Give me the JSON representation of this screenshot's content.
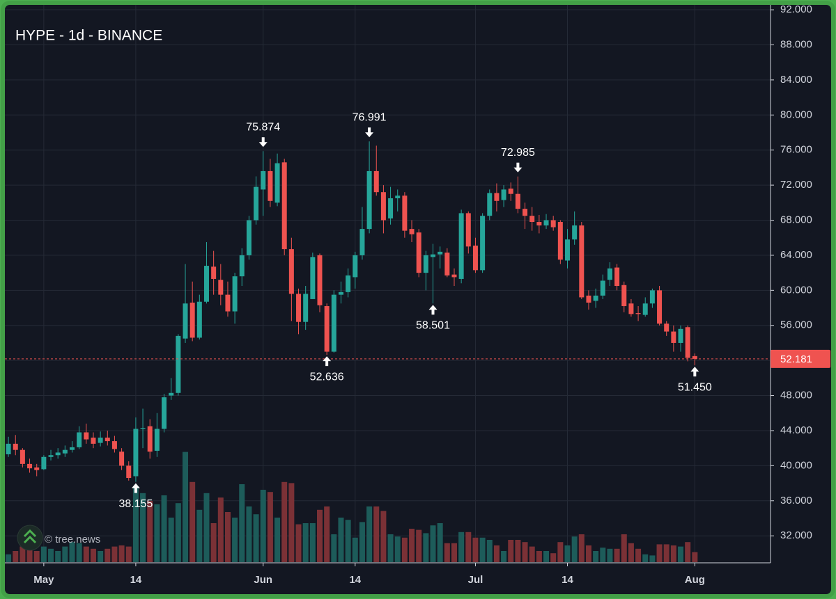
{
  "chart_data": {
    "type": "candlestick",
    "title": "HYPE - 1d - BINANCE",
    "watermark": "© tree.news",
    "up_color": "#26a69a",
    "down_color": "#ef5350",
    "volume_up_color": "#1d5c5a",
    "volume_down_color": "#7b3136",
    "grid": true,
    "x": [
      -5,
      -4,
      -3,
      -2,
      -1,
      0,
      1,
      2,
      3,
      4,
      5,
      6,
      7,
      8,
      9,
      10,
      11,
      12,
      13,
      14,
      15,
      16,
      17,
      18,
      19,
      20,
      21,
      22,
      23,
      24,
      25,
      26,
      27,
      28,
      29,
      30,
      31,
      32,
      33,
      34,
      35,
      36,
      37,
      38,
      39,
      40,
      41,
      42,
      43,
      44,
      45,
      46,
      47,
      48,
      49,
      50,
      51,
      52,
      53,
      54,
      55,
      56,
      57,
      58,
      59,
      60,
      61,
      62,
      63,
      64,
      65,
      66,
      67,
      68,
      69,
      70,
      71,
      72,
      73,
      74,
      75,
      76,
      77,
      78,
      79,
      80,
      81,
      82,
      83,
      84,
      85,
      86,
      87,
      88,
      89,
      90,
      91,
      92
    ],
    "open": [
      41.3,
      42.5,
      41.8,
      40.2,
      39.8,
      39.6,
      41.0,
      41.2,
      41.4,
      41.8,
      42.1,
      43.8,
      43.2,
      42.6,
      43.2,
      42.8,
      41.6,
      40.0,
      38.8,
      44.2,
      44.5,
      41.7,
      44.2,
      48.0,
      48.3,
      54.5,
      58.6,
      54.6,
      58.7,
      62.7,
      61.2,
      59.5,
      57.6,
      61.6,
      64.0,
      68.0,
      71.5,
      73.6,
      70.0,
      74.6,
      64.7,
      59.6,
      56.4,
      59.0,
      64.0,
      58.2,
      53.0,
      59.5,
      59.8,
      61.5,
      64.0,
      67.0,
      73.6,
      71.2,
      68.2,
      70.5,
      70.8,
      67.0,
      66.6,
      62.0,
      63.8,
      64.1,
      64.3,
      61.8,
      61.3,
      68.8,
      65.1,
      62.3,
      68.5,
      71.1,
      70.3,
      71.6,
      71.0,
      69.3,
      68.5,
      67.8,
      67.4,
      68.0,
      67.8,
      63.4,
      65.8,
      67.4,
      59.4,
      58.8,
      59.4,
      61.2,
      62.6,
      60.6,
      58.5,
      57.4,
      57.2,
      58.5,
      60.0,
      56.2,
      55.3,
      54.0,
      55.8,
      52.5
    ],
    "high": [
      43.3,
      43.5,
      42.0,
      40.8,
      40.2,
      41.2,
      41.8,
      42.0,
      42.3,
      42.8,
      44.5,
      44.8,
      43.8,
      43.9,
      44.0,
      43.4,
      42.0,
      40.5,
      45.5,
      46.5,
      45.3,
      46.0,
      48.2,
      50.0,
      55.0,
      63.0,
      61.0,
      59.5,
      65.5,
      64.5,
      63.0,
      61.0,
      62.0,
      64.8,
      68.5,
      73.0,
      75.874,
      75.0,
      75.6,
      75.0,
      66.0,
      60.2,
      60.5,
      64.3,
      64.2,
      58.5,
      60.0,
      61.0,
      62.5,
      64.4,
      69.5,
      76.991,
      76.5,
      72.0,
      71.8,
      71.5,
      71.2,
      68.0,
      67.0,
      64.5,
      65.3,
      65.0,
      64.8,
      62.5,
      69.2,
      69.0,
      66.0,
      68.8,
      71.5,
      72.2,
      72.0,
      72.3,
      72.985,
      70.0,
      69.5,
      68.6,
      68.7,
      68.5,
      68.0,
      67.0,
      69.0,
      67.8,
      60.0,
      60.2,
      61.8,
      63.2,
      63.0,
      61.0,
      59.0,
      58.2,
      59.2,
      60.2,
      60.5,
      56.5,
      56.0,
      56.0,
      56.0,
      52.8
    ],
    "low": [
      41.0,
      41.2,
      39.8,
      39.2,
      38.8,
      39.5,
      40.6,
      40.8,
      41.0,
      41.5,
      41.9,
      42.5,
      42.0,
      42.2,
      42.3,
      41.5,
      39.5,
      38.3,
      38.155,
      42.0,
      40.8,
      41.0,
      43.8,
      47.5,
      48.0,
      54.0,
      54.2,
      54.4,
      58.5,
      59.5,
      58.3,
      57.0,
      56.2,
      60.5,
      63.5,
      67.5,
      68.5,
      69.5,
      69.6,
      64.0,
      56.5,
      55.0,
      55.5,
      59.0,
      57.5,
      52.636,
      52.9,
      58.5,
      59.2,
      60.2,
      63.5,
      66.5,
      70.8,
      66.5,
      67.5,
      69.0,
      66.0,
      65.5,
      61.5,
      60.0,
      58.501,
      62.5,
      61.5,
      60.5,
      60.8,
      64.2,
      62.0,
      62.0,
      68.0,
      69.0,
      69.5,
      70.2,
      68.8,
      67.0,
      66.8,
      66.5,
      67.0,
      66.8,
      63.0,
      62.5,
      65.2,
      59.0,
      57.8,
      58.0,
      59.0,
      60.5,
      60.0,
      57.5,
      57.0,
      56.5,
      57.0,
      58.0,
      56.0,
      54.8,
      53.0,
      53.0,
      51.9,
      51.45
    ],
    "close": [
      42.5,
      41.8,
      40.2,
      39.7,
      39.5,
      41.0,
      41.2,
      41.5,
      41.8,
      42.1,
      43.8,
      43.0,
      42.5,
      43.2,
      42.8,
      41.9,
      40.0,
      38.6,
      44.2,
      44.3,
      41.6,
      44.2,
      47.8,
      48.3,
      54.8,
      58.5,
      54.6,
      58.7,
      62.8,
      61.3,
      59.5,
      57.6,
      61.6,
      64.0,
      68.0,
      71.8,
      73.6,
      70.2,
      74.5,
      64.7,
      59.6,
      56.4,
      59.6,
      63.8,
      58.3,
      53.0,
      59.5,
      59.8,
      61.7,
      64.0,
      67.0,
      73.6,
      71.2,
      68.0,
      70.5,
      70.8,
      66.8,
      66.4,
      62.0,
      64.0,
      64.1,
      64.4,
      61.7,
      61.5,
      68.8,
      65.0,
      62.3,
      68.5,
      71.1,
      70.2,
      71.5,
      71.0,
      69.3,
      68.5,
      67.8,
      67.4,
      68.0,
      67.2,
      63.5,
      65.8,
      67.4,
      59.2,
      58.6,
      59.4,
      61.1,
      62.5,
      60.5,
      58.2,
      57.3,
      57.3,
      58.5,
      60.0,
      56.2,
      55.3,
      54.0,
      55.6,
      52.3,
      52.181
    ],
    "volume": [
      7,
      10,
      14,
      12,
      10,
      14,
      12,
      10,
      14,
      18,
      17,
      14,
      12,
      10,
      12,
      14,
      15,
      14,
      68,
      62,
      55,
      52,
      60,
      40,
      53,
      99,
      72,
      47,
      62,
      35,
      58,
      45,
      40,
      70,
      50,
      43,
      65,
      63,
      40,
      72,
      71,
      34,
      35,
      35,
      47,
      50,
      25,
      40,
      38,
      22,
      36,
      50,
      50,
      46,
      25,
      23,
      22,
      30,
      29,
      26,
      33,
      35,
      17,
      17,
      27,
      27,
      22,
      22,
      20,
      15,
      10,
      20,
      20,
      18,
      14,
      10,
      10,
      8,
      18,
      15,
      23,
      25,
      15,
      10,
      13,
      12,
      12,
      25,
      17,
      12,
      7,
      6,
      16,
      16,
      15,
      14,
      18,
      9
    ],
    "vlim": [
      0,
      100
    ],
    "xlim": [
      -5.5,
      102.6
    ],
    "xticks": [
      {
        "value": 0,
        "label": "May"
      },
      {
        "value": 13,
        "label": "14"
      },
      {
        "value": 31,
        "label": "Jun"
      },
      {
        "value": 44,
        "label": "14"
      },
      {
        "value": 61,
        "label": "Jul"
      },
      {
        "value": 74,
        "label": "14"
      },
      {
        "value": 92,
        "label": "Aug"
      }
    ],
    "ylim": [
      29,
      92.56
    ],
    "yticks": [
      {
        "value": 32,
        "label": "32.000"
      },
      {
        "value": 36,
        "label": "36.000"
      },
      {
        "value": 40,
        "label": "40.000"
      },
      {
        "value": 44,
        "label": "44.000"
      },
      {
        "value": 48,
        "label": "48.000"
      },
      {
        "value": 52,
        "label": "52.000"
      },
      {
        "value": 56,
        "label": "56.000"
      },
      {
        "value": 60,
        "label": "60.000"
      },
      {
        "value": 64,
        "label": "64.000"
      },
      {
        "value": 68,
        "label": "68.000"
      },
      {
        "value": 72,
        "label": "72.000"
      },
      {
        "value": 76,
        "label": "76.000"
      },
      {
        "value": 80,
        "label": "80.000"
      },
      {
        "value": 84,
        "label": "84.000"
      },
      {
        "value": 88,
        "label": "88.000"
      },
      {
        "value": 92,
        "label": "92.000"
      }
    ],
    "last_price": {
      "value": 52.181,
      "label": "52.181"
    },
    "annotations": [
      {
        "x": 13,
        "value": 38.155,
        "label": "38.155",
        "position": "below"
      },
      {
        "x": 31,
        "value": 75.874,
        "label": "75.874",
        "position": "above"
      },
      {
        "x": 40,
        "value": 52.636,
        "label": "52.636",
        "position": "below"
      },
      {
        "x": 46,
        "value": 76.991,
        "label": "76.991",
        "position": "above"
      },
      {
        "x": 55,
        "value": 58.501,
        "label": "58.501",
        "position": "below"
      },
      {
        "x": 67,
        "value": 72.985,
        "label": "72.985",
        "position": "above"
      },
      {
        "x": 92,
        "value": 51.45,
        "label": "51.450",
        "position": "below"
      }
    ]
  }
}
